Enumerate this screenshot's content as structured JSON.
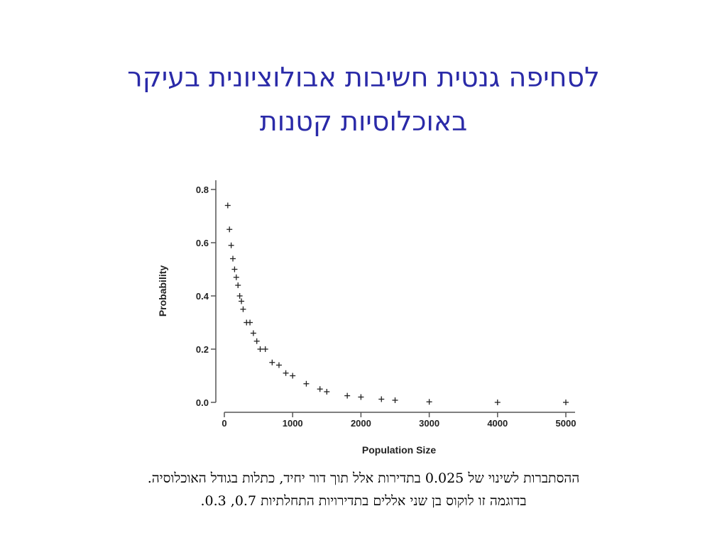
{
  "slide": {
    "title_line1": "לסחיפה גנטית חשיבות אבולוציונית בעיקר",
    "title_line2": "באוכלוסיות קטנות",
    "caption_line1": "ההסתברות לשינוי של 0.025 בתדירות אלל תוך דור יחיד, כתלות בגודל האוכלוסיה.",
    "caption_line2": "בדוגמה זו לוקוס בן שני אללים בתדירויות התחלתיות 0.7, 0.3."
  },
  "colors": {
    "title": "#2a2aa8",
    "axis": "#555555",
    "marker": "#222222"
  },
  "chart_data": {
    "type": "scatter",
    "xlabel": "Population Size",
    "ylabel": "Probability",
    "xlim": [
      0,
      5000
    ],
    "ylim": [
      0,
      0.8
    ],
    "x_ticks": [
      0,
      1000,
      2000,
      3000,
      4000,
      5000
    ],
    "y_ticks": [
      0.0,
      0.2,
      0.4,
      0.6,
      0.8
    ],
    "x_tick_labels": [
      "0",
      "1000",
      "2000",
      "3000",
      "4000",
      "5000"
    ],
    "y_tick_labels": [
      "0.0",
      "0.2",
      "0.4",
      "0.6",
      "0.8"
    ],
    "marker": "plus",
    "grid": false,
    "points": [
      {
        "x": 50,
        "y": 0.74
      },
      {
        "x": 75,
        "y": 0.65
      },
      {
        "x": 100,
        "y": 0.59
      },
      {
        "x": 125,
        "y": 0.54
      },
      {
        "x": 150,
        "y": 0.5
      },
      {
        "x": 175,
        "y": 0.47
      },
      {
        "x": 200,
        "y": 0.44
      },
      {
        "x": 225,
        "y": 0.4
      },
      {
        "x": 250,
        "y": 0.38
      },
      {
        "x": 275,
        "y": 0.35
      },
      {
        "x": 325,
        "y": 0.3
      },
      {
        "x": 375,
        "y": 0.3
      },
      {
        "x": 425,
        "y": 0.26
      },
      {
        "x": 475,
        "y": 0.23
      },
      {
        "x": 525,
        "y": 0.2
      },
      {
        "x": 600,
        "y": 0.2
      },
      {
        "x": 700,
        "y": 0.15
      },
      {
        "x": 800,
        "y": 0.14
      },
      {
        "x": 900,
        "y": 0.11
      },
      {
        "x": 1000,
        "y": 0.1
      },
      {
        "x": 1200,
        "y": 0.07
      },
      {
        "x": 1400,
        "y": 0.05
      },
      {
        "x": 1500,
        "y": 0.04
      },
      {
        "x": 1800,
        "y": 0.025
      },
      {
        "x": 2000,
        "y": 0.02
      },
      {
        "x": 2300,
        "y": 0.012
      },
      {
        "x": 2500,
        "y": 0.008
      },
      {
        "x": 3000,
        "y": 0.002
      },
      {
        "x": 4000,
        "y": 0.0
      },
      {
        "x": 5000,
        "y": 0.0
      }
    ]
  }
}
